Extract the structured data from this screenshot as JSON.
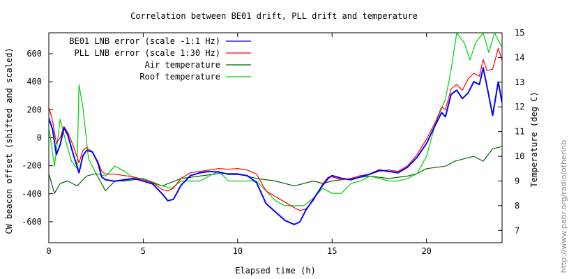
{
  "chart_data": {
    "type": "line",
    "title": "Correlation between BE01 drift, PLL drift and temperature",
    "xlabel": "Elapsed time (h)",
    "ylabel": "CW beacon offset (shifted and scaled)",
    "y2label": "Temperature (deg C)",
    "credit": "http://www.pabr.org/radio/otherlnb",
    "xlim": [
      0,
      24
    ],
    "ylim": [
      -750,
      750
    ],
    "y2lim": [
      6.5,
      15
    ],
    "xticks": [
      "0",
      "5",
      "10",
      "15",
      "20"
    ],
    "xtick_values": [
      0,
      5,
      10,
      15,
      20
    ],
    "yticks": [
      "-600",
      "-400",
      "-200",
      "0",
      "200",
      "400",
      "600"
    ],
    "ytick_values": [
      -600,
      -400,
      -200,
      0,
      200,
      400,
      600
    ],
    "y2ticks": [
      "7",
      "8",
      "9",
      "10",
      "11",
      "12",
      "13",
      "14",
      "15"
    ],
    "y2tick_values": [
      7,
      8,
      9,
      10,
      11,
      12,
      13,
      14,
      15
    ],
    "grid": false,
    "legend_position": "top-left",
    "series": [
      {
        "name": "BE01 LNB error (scale -1:1 Hz)",
        "color": "#0000ff",
        "axis": "left",
        "x": [
          0,
          0.2,
          0.4,
          0.6,
          0.8,
          1.0,
          1.3,
          1.6,
          1.8,
          2.0,
          2.3,
          2.6,
          2.8,
          3.0,
          3.5,
          4.0,
          4.5,
          5.0,
          5.5,
          6.0,
          6.3,
          6.6,
          7.0,
          7.5,
          8.0,
          8.5,
          9.0,
          9.5,
          10.0,
          10.5,
          11.0,
          11.5,
          12.0,
          12.5,
          13.0,
          13.3,
          13.6,
          14.0,
          14.5,
          14.8,
          15.0,
          15.5,
          16.0,
          16.5,
          17.0,
          17.5,
          18.0,
          18.5,
          19.0,
          19.5,
          20.0,
          20.5,
          20.8,
          21.0,
          21.3,
          21.6,
          21.9,
          22.2,
          22.5,
          22.8,
          23.0,
          23.2,
          23.5,
          23.8,
          24.0
        ],
        "y": [
          140,
          60,
          -120,
          -50,
          70,
          20,
          -120,
          -250,
          -130,
          -90,
          -100,
          -180,
          -280,
          -300,
          -310,
          -300,
          -290,
          -310,
          -330,
          -400,
          -450,
          -440,
          -340,
          -270,
          -250,
          -240,
          -245,
          -260,
          -260,
          -270,
          -320,
          -470,
          -530,
          -590,
          -620,
          -600,
          -520,
          -440,
          -340,
          -290,
          -270,
          -290,
          -300,
          -280,
          -260,
          -230,
          -240,
          -250,
          -210,
          -140,
          -40,
          100,
          180,
          150,
          310,
          340,
          280,
          320,
          400,
          380,
          500,
          370,
          160,
          400,
          250
        ]
      },
      {
        "name": "PLL LNB error (scale 1:30 Hz)",
        "color": "#ff0000",
        "axis": "left",
        "x": [
          0,
          0.2,
          0.4,
          0.6,
          0.8,
          1.0,
          1.3,
          1.6,
          1.8,
          2.0,
          2.3,
          2.6,
          2.8,
          3.0,
          3.5,
          4.0,
          4.5,
          5.0,
          5.5,
          6.0,
          6.3,
          6.6,
          7.0,
          7.5,
          8.0,
          8.5,
          9.0,
          9.5,
          10.0,
          10.5,
          11.0,
          11.5,
          12.0,
          12.5,
          13.0,
          13.3,
          13.6,
          14.0,
          14.5,
          14.8,
          15.0,
          15.5,
          16.0,
          16.5,
          17.0,
          17.5,
          18.0,
          18.5,
          19.0,
          19.5,
          20.0,
          20.5,
          20.8,
          21.0,
          21.3,
          21.6,
          21.9,
          22.2,
          22.5,
          22.8,
          23.0,
          23.2,
          23.5,
          23.8,
          24.0
        ],
        "y": [
          220,
          120,
          -40,
          0,
          80,
          40,
          -60,
          -180,
          -90,
          -70,
          -100,
          -170,
          -240,
          -260,
          -260,
          -270,
          -280,
          -300,
          -320,
          -370,
          -380,
          -360,
          -290,
          -250,
          -240,
          -230,
          -220,
          -225,
          -220,
          -230,
          -260,
          -380,
          -420,
          -460,
          -500,
          -520,
          -510,
          -450,
          -330,
          -280,
          -280,
          -300,
          -290,
          -270,
          -260,
          -240,
          -230,
          -240,
          -200,
          -120,
          -10,
          120,
          220,
          200,
          350,
          380,
          340,
          420,
          460,
          440,
          560,
          480,
          490,
          640,
          550
        ]
      },
      {
        "name": "Air temperature",
        "color": "#006400",
        "axis": "right",
        "x": [
          0,
          0.3,
          0.6,
          1.0,
          1.5,
          2.0,
          2.5,
          3.0,
          3.5,
          4.0,
          5.0,
          6.0,
          7.0,
          8.0,
          9.0,
          10.0,
          11.0,
          12.0,
          13.0,
          14.0,
          14.5,
          15.0,
          16.0,
          17.0,
          18.0,
          19.0,
          19.5,
          20.0,
          21.0,
          21.5,
          22.0,
          22.5,
          23.0,
          23.5,
          24.0
        ],
        "y": [
          9.3,
          8.5,
          8.9,
          9.0,
          8.8,
          9.2,
          9.3,
          8.6,
          9.0,
          9.0,
          9.1,
          8.8,
          9.1,
          9.2,
          9.3,
          9.3,
          9.1,
          9.0,
          8.8,
          9.0,
          8.9,
          9.0,
          9.1,
          9.2,
          9.1,
          9.2,
          9.3,
          9.5,
          9.6,
          9.8,
          9.9,
          10.0,
          9.8,
          10.3,
          10.4
        ]
      },
      {
        "name": "Roof temperature",
        "color": "#00d000",
        "axis": "right",
        "x": [
          0,
          0.3,
          0.6,
          0.9,
          1.2,
          1.5,
          1.6,
          1.8,
          2.1,
          2.5,
          3.0,
          3.5,
          4.0,
          4.5,
          5.0,
          5.5,
          6.0,
          6.5,
          7.0,
          7.5,
          8.0,
          8.5,
          9.0,
          9.5,
          10.0,
          10.5,
          11.0,
          11.5,
          12.0,
          12.5,
          13.0,
          13.5,
          14.0,
          14.5,
          15.0,
          15.5,
          16.0,
          16.5,
          17.0,
          17.5,
          18.0,
          18.5,
          19.0,
          19.5,
          20.0,
          20.5,
          21.0,
          21.3,
          21.6,
          22.0,
          22.3,
          22.6,
          23.0,
          23.3,
          23.6,
          24.0
        ],
        "y": [
          11.2,
          9.6,
          11.5,
          10.6,
          9.8,
          9.5,
          12.9,
          12.0,
          9.9,
          9.3,
          9.2,
          9.6,
          9.4,
          9.1,
          9.1,
          8.9,
          8.8,
          8.7,
          9.0,
          9.0,
          9.0,
          9.2,
          9.4,
          9.0,
          9.0,
          9.0,
          9.0,
          8.6,
          8.2,
          8.0,
          8.0,
          8.0,
          8.3,
          8.7,
          8.5,
          8.5,
          8.9,
          9.0,
          9.2,
          9.1,
          9.0,
          9.0,
          9.1,
          9.3,
          10.0,
          11.4,
          12.3,
          13.5,
          15.0,
          14.6,
          13.9,
          14.6,
          15.0,
          14.2,
          15.0,
          14.4
        ]
      }
    ]
  }
}
